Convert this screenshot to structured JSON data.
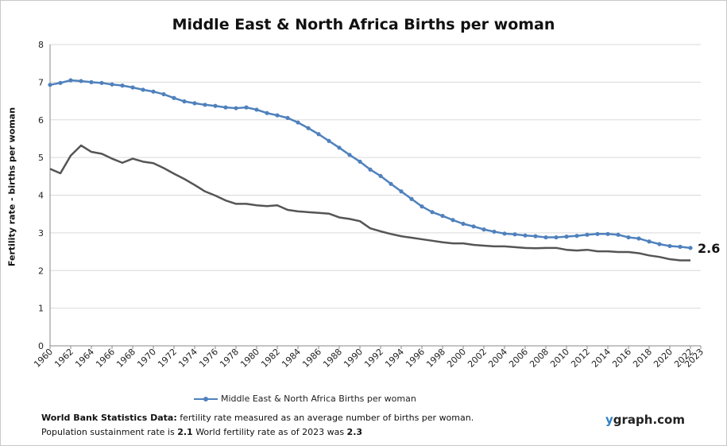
{
  "title": "Middle East & North Africa Births per woman",
  "ylabel": "Fertility rate  - births per woman",
  "legend": {
    "label": "Middle East & North Africa Births per woman"
  },
  "footnote": {
    "line1_bold": "World Bank Statistics Data:",
    "line1_rest": " fertility rate measured as an average number  of births per woman.",
    "line2_prefix": "Population sustainment rate is ",
    "sustain_rate": "2.1",
    "line2_mid": "   World fertility rate as of 2023 was ",
    "world_rate": "2.3"
  },
  "brand": {
    "accent": "y",
    "rest": "graph.com"
  },
  "end_label": "2.6",
  "colors": {
    "primary": "#4f81bd",
    "secondary": "#555555",
    "grid": "#d9d9d9"
  },
  "chart_data": {
    "type": "line",
    "title": "Middle East & North Africa Births per woman",
    "ylabel": "Fertility rate  - births per woman",
    "xlabel": "",
    "xlim": [
      1960,
      2023
    ],
    "ylim": [
      0,
      8
    ],
    "grid": true,
    "legend_position": "bottom",
    "x_ticks": [
      1960,
      1962,
      1964,
      1966,
      1968,
      1970,
      1972,
      1974,
      1976,
      1978,
      1980,
      1982,
      1984,
      1986,
      1988,
      1990,
      1992,
      1994,
      1996,
      1998,
      2000,
      2002,
      2004,
      2006,
      2008,
      2010,
      2012,
      2014,
      2016,
      2018,
      2020,
      2022,
      2023
    ],
    "y_ticks": [
      0,
      1,
      2,
      3,
      4,
      5,
      6,
      7,
      8
    ],
    "series": [
      {
        "name": "Middle East & North Africa Births per woman",
        "x": [
          1960,
          1961,
          1962,
          1963,
          1964,
          1965,
          1966,
          1967,
          1968,
          1969,
          1970,
          1971,
          1972,
          1973,
          1974,
          1975,
          1976,
          1977,
          1978,
          1979,
          1980,
          1981,
          1982,
          1983,
          1984,
          1985,
          1986,
          1987,
          1988,
          1989,
          1990,
          1991,
          1992,
          1993,
          1994,
          1995,
          1996,
          1997,
          1998,
          1999,
          2000,
          2001,
          2002,
          2003,
          2004,
          2005,
          2006,
          2007,
          2008,
          2009,
          2010,
          2011,
          2012,
          2013,
          2014,
          2015,
          2016,
          2017,
          2018,
          2019,
          2020,
          2021,
          2022
        ],
        "values": [
          6.93,
          6.98,
          7.05,
          7.03,
          7.0,
          6.98,
          6.94,
          6.91,
          6.86,
          6.8,
          6.75,
          6.68,
          6.58,
          6.49,
          6.44,
          6.4,
          6.37,
          6.33,
          6.31,
          6.33,
          6.27,
          6.18,
          6.12,
          6.05,
          5.93,
          5.78,
          5.62,
          5.44,
          5.26,
          5.07,
          4.89,
          4.68,
          4.51,
          4.3,
          4.1,
          3.9,
          3.7,
          3.55,
          3.45,
          3.34,
          3.24,
          3.17,
          3.09,
          3.03,
          2.98,
          2.96,
          2.93,
          2.91,
          2.88,
          2.88,
          2.9,
          2.92,
          2.95,
          2.97,
          2.97,
          2.95,
          2.88,
          2.85,
          2.77,
          2.7,
          2.65,
          2.63,
          2.6
        ]
      },
      {
        "x": [
          1960,
          1961,
          1962,
          1963,
          1964,
          1965,
          1966,
          1967,
          1968,
          1969,
          1970,
          1971,
          1972,
          1973,
          1974,
          1975,
          1976,
          1977,
          1978,
          1979,
          1980,
          1981,
          1982,
          1983,
          1984,
          1985,
          1986,
          1987,
          1988,
          1989,
          1990,
          1991,
          1992,
          1993,
          1994,
          1995,
          1996,
          1997,
          1998,
          1999,
          2000,
          2001,
          2002,
          2003,
          2004,
          2005,
          2006,
          2007,
          2008,
          2009,
          2010,
          2011,
          2012,
          2013,
          2014,
          2015,
          2016,
          2017,
          2018,
          2019,
          2020,
          2021,
          2022
        ],
        "values": [
          4.7,
          4.58,
          5.05,
          5.32,
          5.15,
          5.1,
          4.97,
          4.86,
          4.97,
          4.89,
          4.85,
          4.72,
          4.57,
          4.43,
          4.27,
          4.1,
          3.99,
          3.86,
          3.77,
          3.77,
          3.73,
          3.71,
          3.73,
          3.61,
          3.57,
          3.55,
          3.53,
          3.51,
          3.41,
          3.37,
          3.31,
          3.12,
          3.04,
          2.97,
          2.91,
          2.87,
          2.83,
          2.79,
          2.75,
          2.72,
          2.72,
          2.68,
          2.66,
          2.64,
          2.64,
          2.62,
          2.6,
          2.59,
          2.6,
          2.6,
          2.55,
          2.53,
          2.55,
          2.51,
          2.51,
          2.49,
          2.49,
          2.46,
          2.4,
          2.36,
          2.3,
          2.27,
          2.27
        ]
      }
    ],
    "annotations": [
      {
        "x": 2022,
        "y": 2.6,
        "text": "2.6"
      }
    ]
  }
}
